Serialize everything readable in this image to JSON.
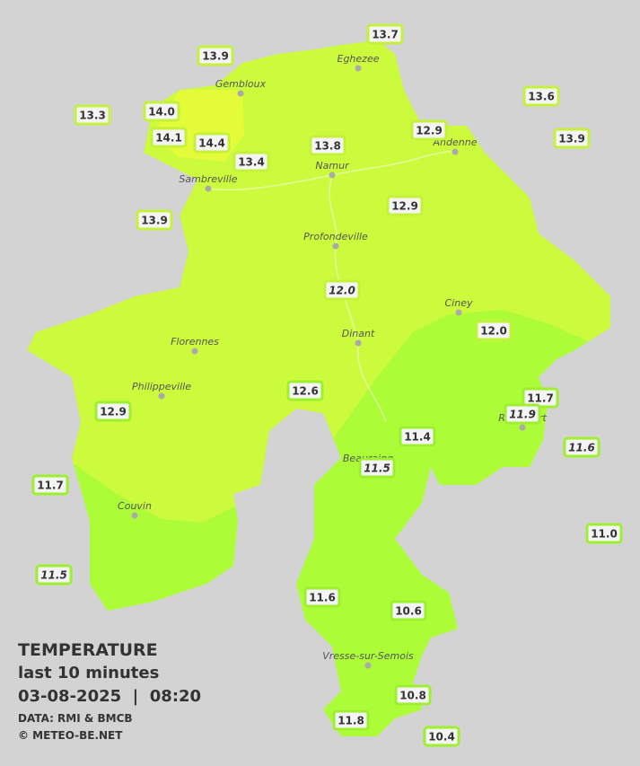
{
  "title": "TEMPERATURE",
  "subtitle": "last 10 minutes",
  "datetime": "03-08-2025  |  08:20",
  "source": "DATA: RMI & BMCB",
  "copyright": "© METEO-BE.NET",
  "towns": [
    "Eghezee",
    "Gembloux",
    "Andenne",
    "Namur",
    "Sambreville",
    "Profondeville",
    "Ciney",
    "Dinant",
    "Florennes",
    "Philippeville",
    "Rochefort",
    "Beauraing",
    "Couvin",
    "Vresse-sur-Semois"
  ],
  "stations": [
    "13.7",
    "13.9",
    "13.3",
    "14.0",
    "14.1",
    "14.4",
    "13.4",
    "13.8",
    "12.9",
    "13.6",
    "13.9",
    "13.9",
    "12.9",
    "12.0",
    "12.0",
    "11.7",
    "11.9",
    "11.6",
    "12.6",
    "12.9",
    "11.4",
    "11.5",
    "11.7",
    "11.0",
    "11.5",
    "11.6",
    "10.6",
    "10.8",
    "11.8",
    "10.4"
  ]
}
